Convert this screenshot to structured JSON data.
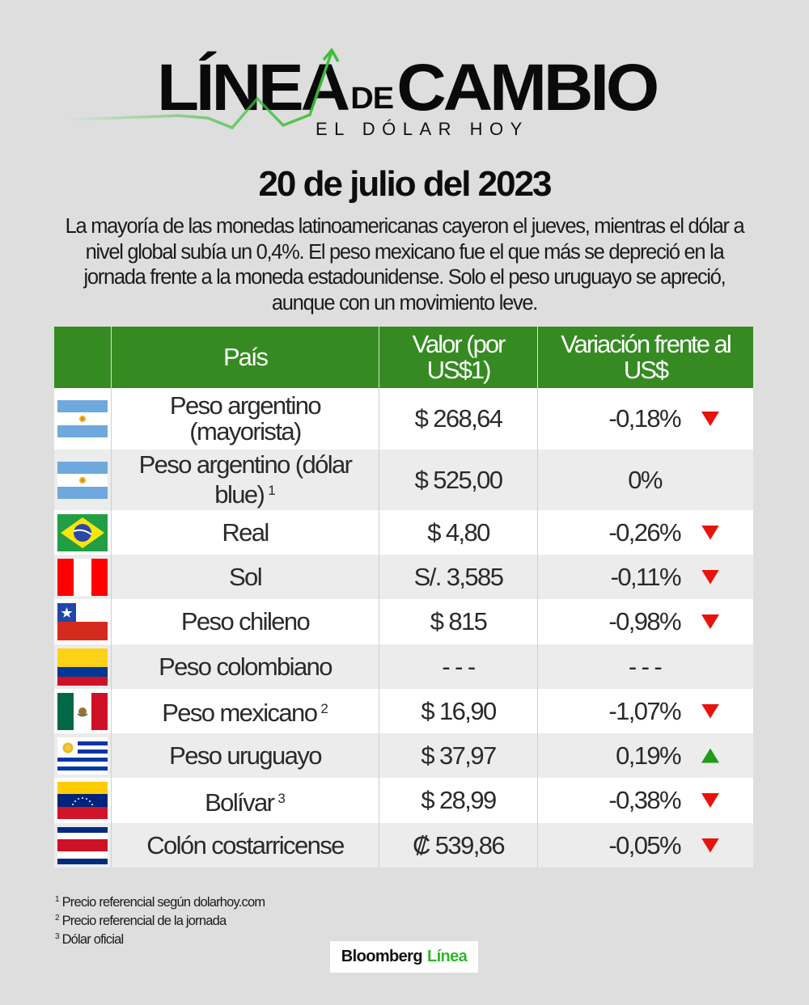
{
  "logo": {
    "title_part1": "LÍNEA",
    "title_de": "DE",
    "title_part2": "CAMBIO",
    "subtitle": "EL DÓLAR HOY",
    "arrow_color": "#3fbe3a"
  },
  "date_title": "20 de julio del 2023",
  "intro": "La mayoría de las monedas latinoamericanas cayeron el jueves, mientras el dólar a nivel global subía un 0,4%. El peso mexicano fue el que más se depreció en la jornada frente a la moneda estadounidense. Solo el peso uruguayo se apreció, aunque con un movimiento leve.",
  "table": {
    "header_color": "#358b22",
    "headers": {
      "flag": "",
      "country": "País",
      "value": "Valor (por US$1)",
      "variation": "Variación frente al US$"
    },
    "rows": [
      {
        "flag": "argentina",
        "name": "Peso argentino (mayorista)",
        "note": "",
        "value": "$ 268,64",
        "variation": "-0,18%",
        "trend": "down"
      },
      {
        "flag": "argentina",
        "name": "Peso argentino (dólar blue)",
        "note": "1",
        "value": "$ 525,00",
        "variation": "0%",
        "trend": "none"
      },
      {
        "flag": "brazil",
        "name": "Real",
        "note": "",
        "value": "$ 4,80",
        "variation": "-0,26%",
        "trend": "down"
      },
      {
        "flag": "peru",
        "name": "Sol",
        "note": "",
        "value": "S/. 3,585",
        "variation": "-0,11%",
        "trend": "down"
      },
      {
        "flag": "chile",
        "name": "Peso chileno",
        "note": "",
        "value": "$ 815",
        "variation": "-0,98%",
        "trend": "down"
      },
      {
        "flag": "colombia",
        "name": "Peso colombiano",
        "note": "",
        "value": "- - -",
        "variation": "- - -",
        "trend": "none"
      },
      {
        "flag": "mexico",
        "name": "Peso mexicano",
        "note": "2",
        "value": "$ 16,90",
        "variation": "-1,07%",
        "trend": "down"
      },
      {
        "flag": "uruguay",
        "name": "Peso uruguayo",
        "note": "",
        "value": "$ 37,97",
        "variation": "0,19%",
        "trend": "up"
      },
      {
        "flag": "venezuela",
        "name": "Bolívar",
        "note": "3",
        "value": "$ 28,99",
        "variation": "-0,38%",
        "trend": "down"
      },
      {
        "flag": "costa-rica",
        "name": "Colón costarricense",
        "note": "",
        "value": "₡ 539,86",
        "variation": "-0,05%",
        "trend": "down"
      }
    ],
    "trend_colors": {
      "down": "#e8120c",
      "up": "#1f9a1a"
    }
  },
  "footnotes": [
    {
      "mark": "1",
      "text": "Precio referencial según dolarhoy.com"
    },
    {
      "mark": "2",
      "text": "Precio referencial de la jornada"
    },
    {
      "mark": "3",
      "text": "Dólar oficial"
    }
  ],
  "brand": {
    "part1": "Bloomberg",
    "part2": "Línea",
    "accent": "#2fb52a"
  }
}
